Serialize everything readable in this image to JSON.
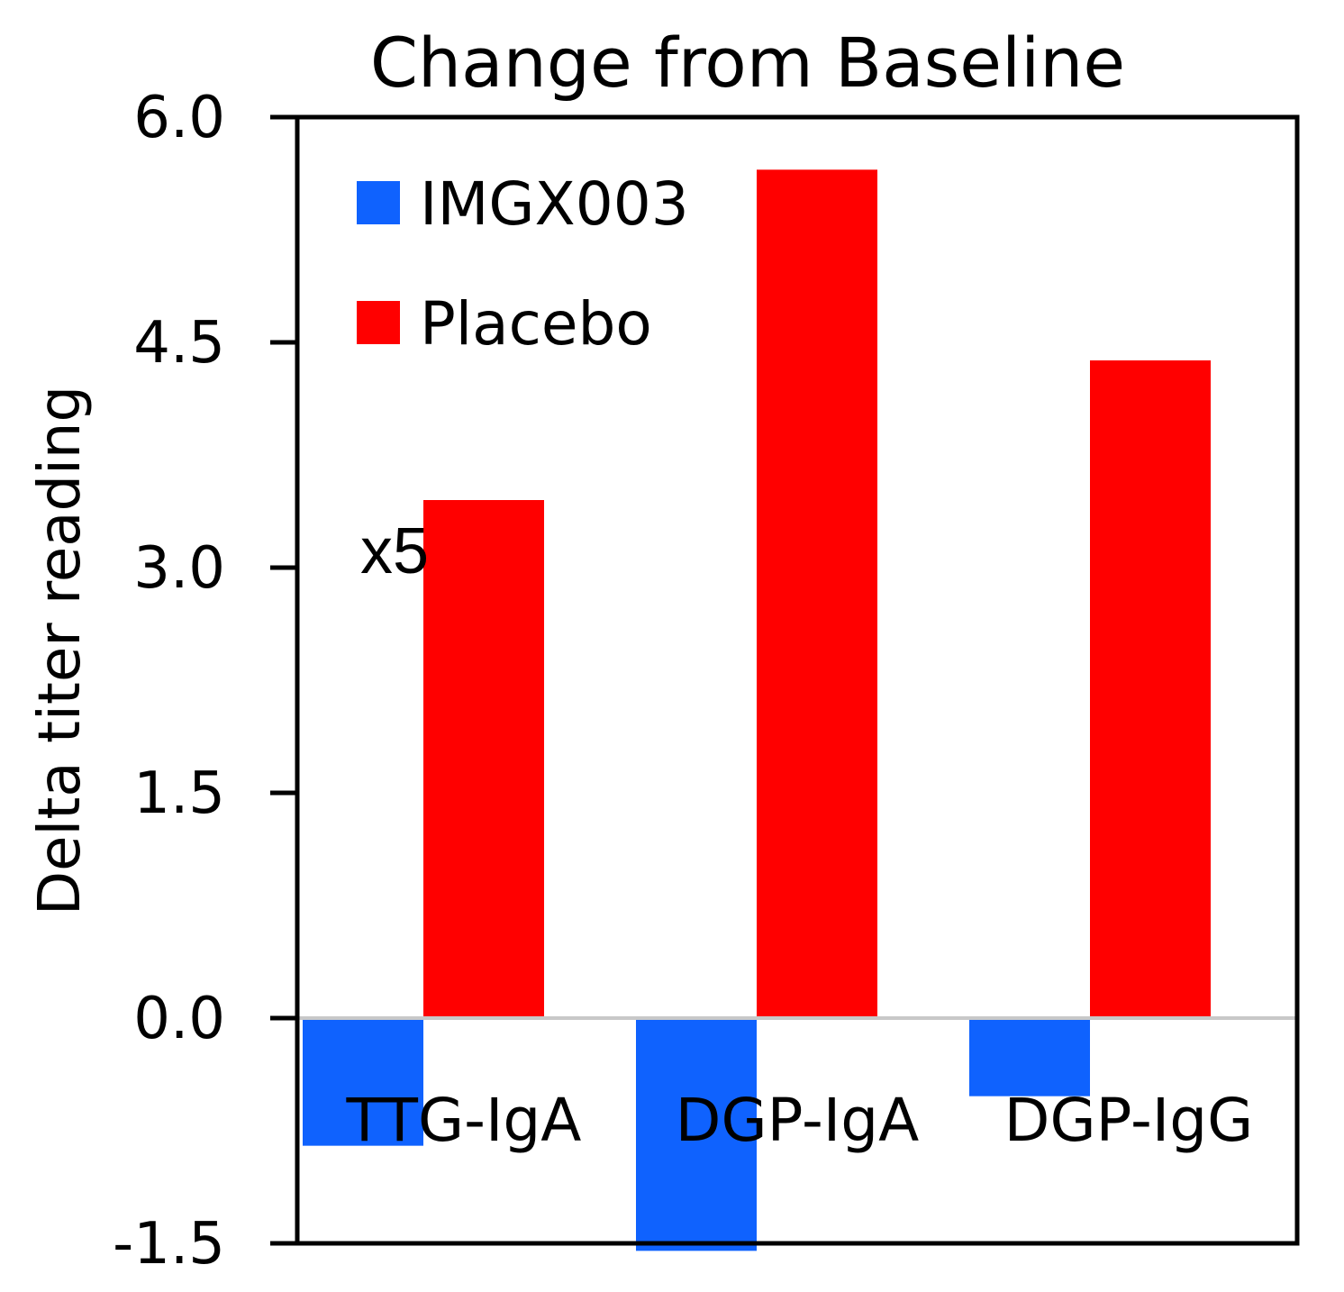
{
  "chart_data": {
    "type": "bar",
    "title": "Change from Baseline",
    "xlabel": "",
    "ylabel": "Delta titer reading",
    "ylim": [
      -1.5,
      6.0
    ],
    "yticks": [
      "6.0",
      "4.5",
      "3.0",
      "1.5",
      "0.0",
      "-1.5"
    ],
    "ytick_values": [
      6.0,
      4.5,
      3.0,
      1.5,
      0.0,
      -1.5
    ],
    "categories": [
      "TTG-IgA",
      "DGP-IgA",
      "DGP-IgG"
    ],
    "series": [
      {
        "name": "IMGX003",
        "color": "#0f62fe",
        "values": [
          -0.85,
          -1.55,
          -0.52
        ]
      },
      {
        "name": "Placebo",
        "color": "#ff0000",
        "values": [
          3.45,
          5.65,
          4.38
        ]
      }
    ],
    "annotation": "x5",
    "grid": false,
    "legend_position": "top-left"
  }
}
